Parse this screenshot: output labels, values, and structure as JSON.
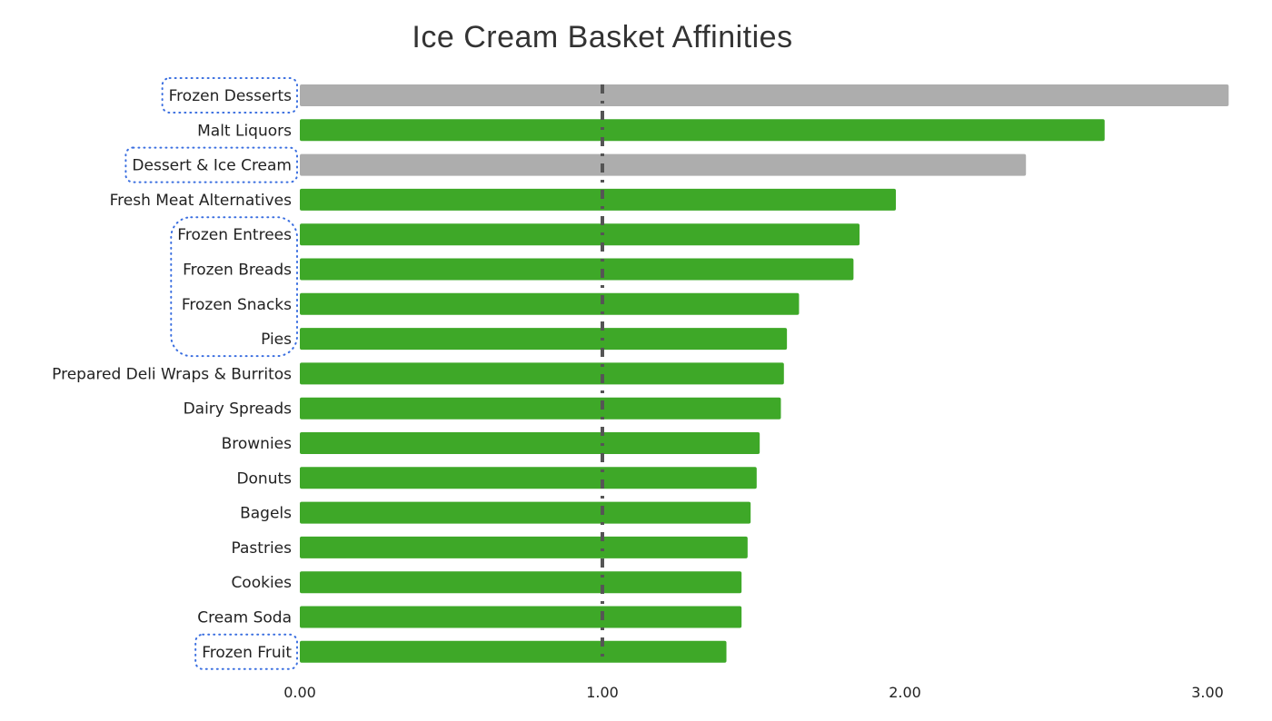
{
  "chart_data": {
    "type": "bar",
    "orientation": "horizontal",
    "title": "Ice Cream Basket Affinities",
    "xlabel": "",
    "ylabel": "",
    "xlim": [
      0,
      3.07
    ],
    "x_ticks": [
      "0.00",
      "1.00",
      "2.00",
      "3.00"
    ],
    "grid": false,
    "reference_line": {
      "value": 1.0,
      "style": "dash-dot",
      "color": "#555555"
    },
    "categories": [
      "Frozen Desserts",
      "Malt Liquors",
      "Dessert & Ice Cream",
      "Fresh Meat Alternatives",
      "Frozen Entrees",
      "Frozen Breads",
      "Frozen Snacks",
      "Pies",
      "Prepared Deli Wraps & Burritos",
      "Dairy Spreads",
      "Brownies",
      "Donuts",
      "Bagels",
      "Pastries",
      "Cookies",
      "Cream Soda",
      "Frozen Fruit"
    ],
    "values": [
      3.07,
      2.66,
      2.4,
      1.97,
      1.85,
      1.83,
      1.65,
      1.61,
      1.6,
      1.59,
      1.52,
      1.51,
      1.49,
      1.48,
      1.46,
      1.46,
      1.41
    ],
    "bar_colors": [
      "#adadad",
      "#3ea828",
      "#adadad",
      "#3ea828",
      "#3ea828",
      "#3ea828",
      "#3ea828",
      "#3ea828",
      "#3ea828",
      "#3ea828",
      "#3ea828",
      "#3ea828",
      "#3ea828",
      "#3ea828",
      "#3ea828",
      "#3ea828",
      "#3ea828"
    ],
    "highlighted_label_groups": [
      [
        "Frozen Desserts"
      ],
      [
        "Dessert & Ice Cream"
      ],
      [
        "Frozen Entrees",
        "Frozen Breads",
        "Frozen Snacks",
        "Pies"
      ],
      [
        "Frozen Fruit"
      ]
    ],
    "highlight_color": "#3b6fe0"
  }
}
